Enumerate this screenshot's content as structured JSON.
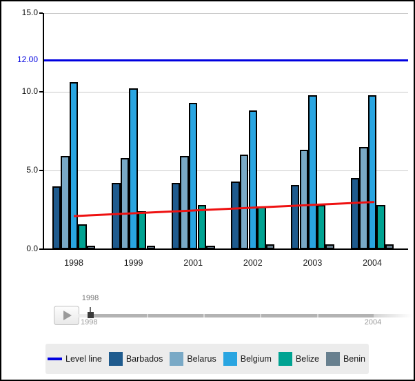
{
  "chart_data": {
    "type": "bar",
    "title": "",
    "categories": [
      "1998",
      "1999",
      "2001",
      "2002",
      "2003",
      "2004"
    ],
    "series": [
      {
        "name": "Barbados",
        "color": "#1f5b8e",
        "values": [
          4.0,
          4.2,
          4.2,
          4.3,
          4.1,
          4.5
        ]
      },
      {
        "name": "Belarus",
        "color": "#79a9c6",
        "values": [
          5.9,
          5.8,
          5.9,
          6.0,
          6.3,
          6.5
        ]
      },
      {
        "name": "Belgium",
        "color": "#29a5e1",
        "values": [
          10.6,
          10.2,
          9.3,
          8.8,
          9.8,
          9.8
        ]
      },
      {
        "name": "Belize",
        "color": "#00a392",
        "values": [
          1.6,
          2.4,
          2.8,
          2.7,
          2.8,
          2.8
        ]
      },
      {
        "name": "Benin",
        "color": "#68808f",
        "values": [
          0.2,
          0.2,
          0.2,
          0.3,
          0.3,
          0.3
        ]
      }
    ],
    "y_ticks": [
      {
        "label": "0.0",
        "value": 0
      },
      {
        "label": "5.0",
        "value": 5
      },
      {
        "label": "10.0",
        "value": 10
      },
      {
        "label": "15.0",
        "value": 15
      }
    ],
    "ylim": [
      0,
      15
    ],
    "grid": true,
    "legend_position": "bottom",
    "level_line": {
      "legend_label": "Level line",
      "label": "12.00",
      "value": 12.0,
      "color": "#0000e0"
    },
    "trend_line": {
      "color": "#ee1111",
      "start_value": 2.1,
      "end_value": 3.0
    }
  },
  "player": {
    "play_icon": "play-triangle",
    "current_year_label": "1998",
    "range_start_label": "1998",
    "range_end_label": "2004"
  }
}
